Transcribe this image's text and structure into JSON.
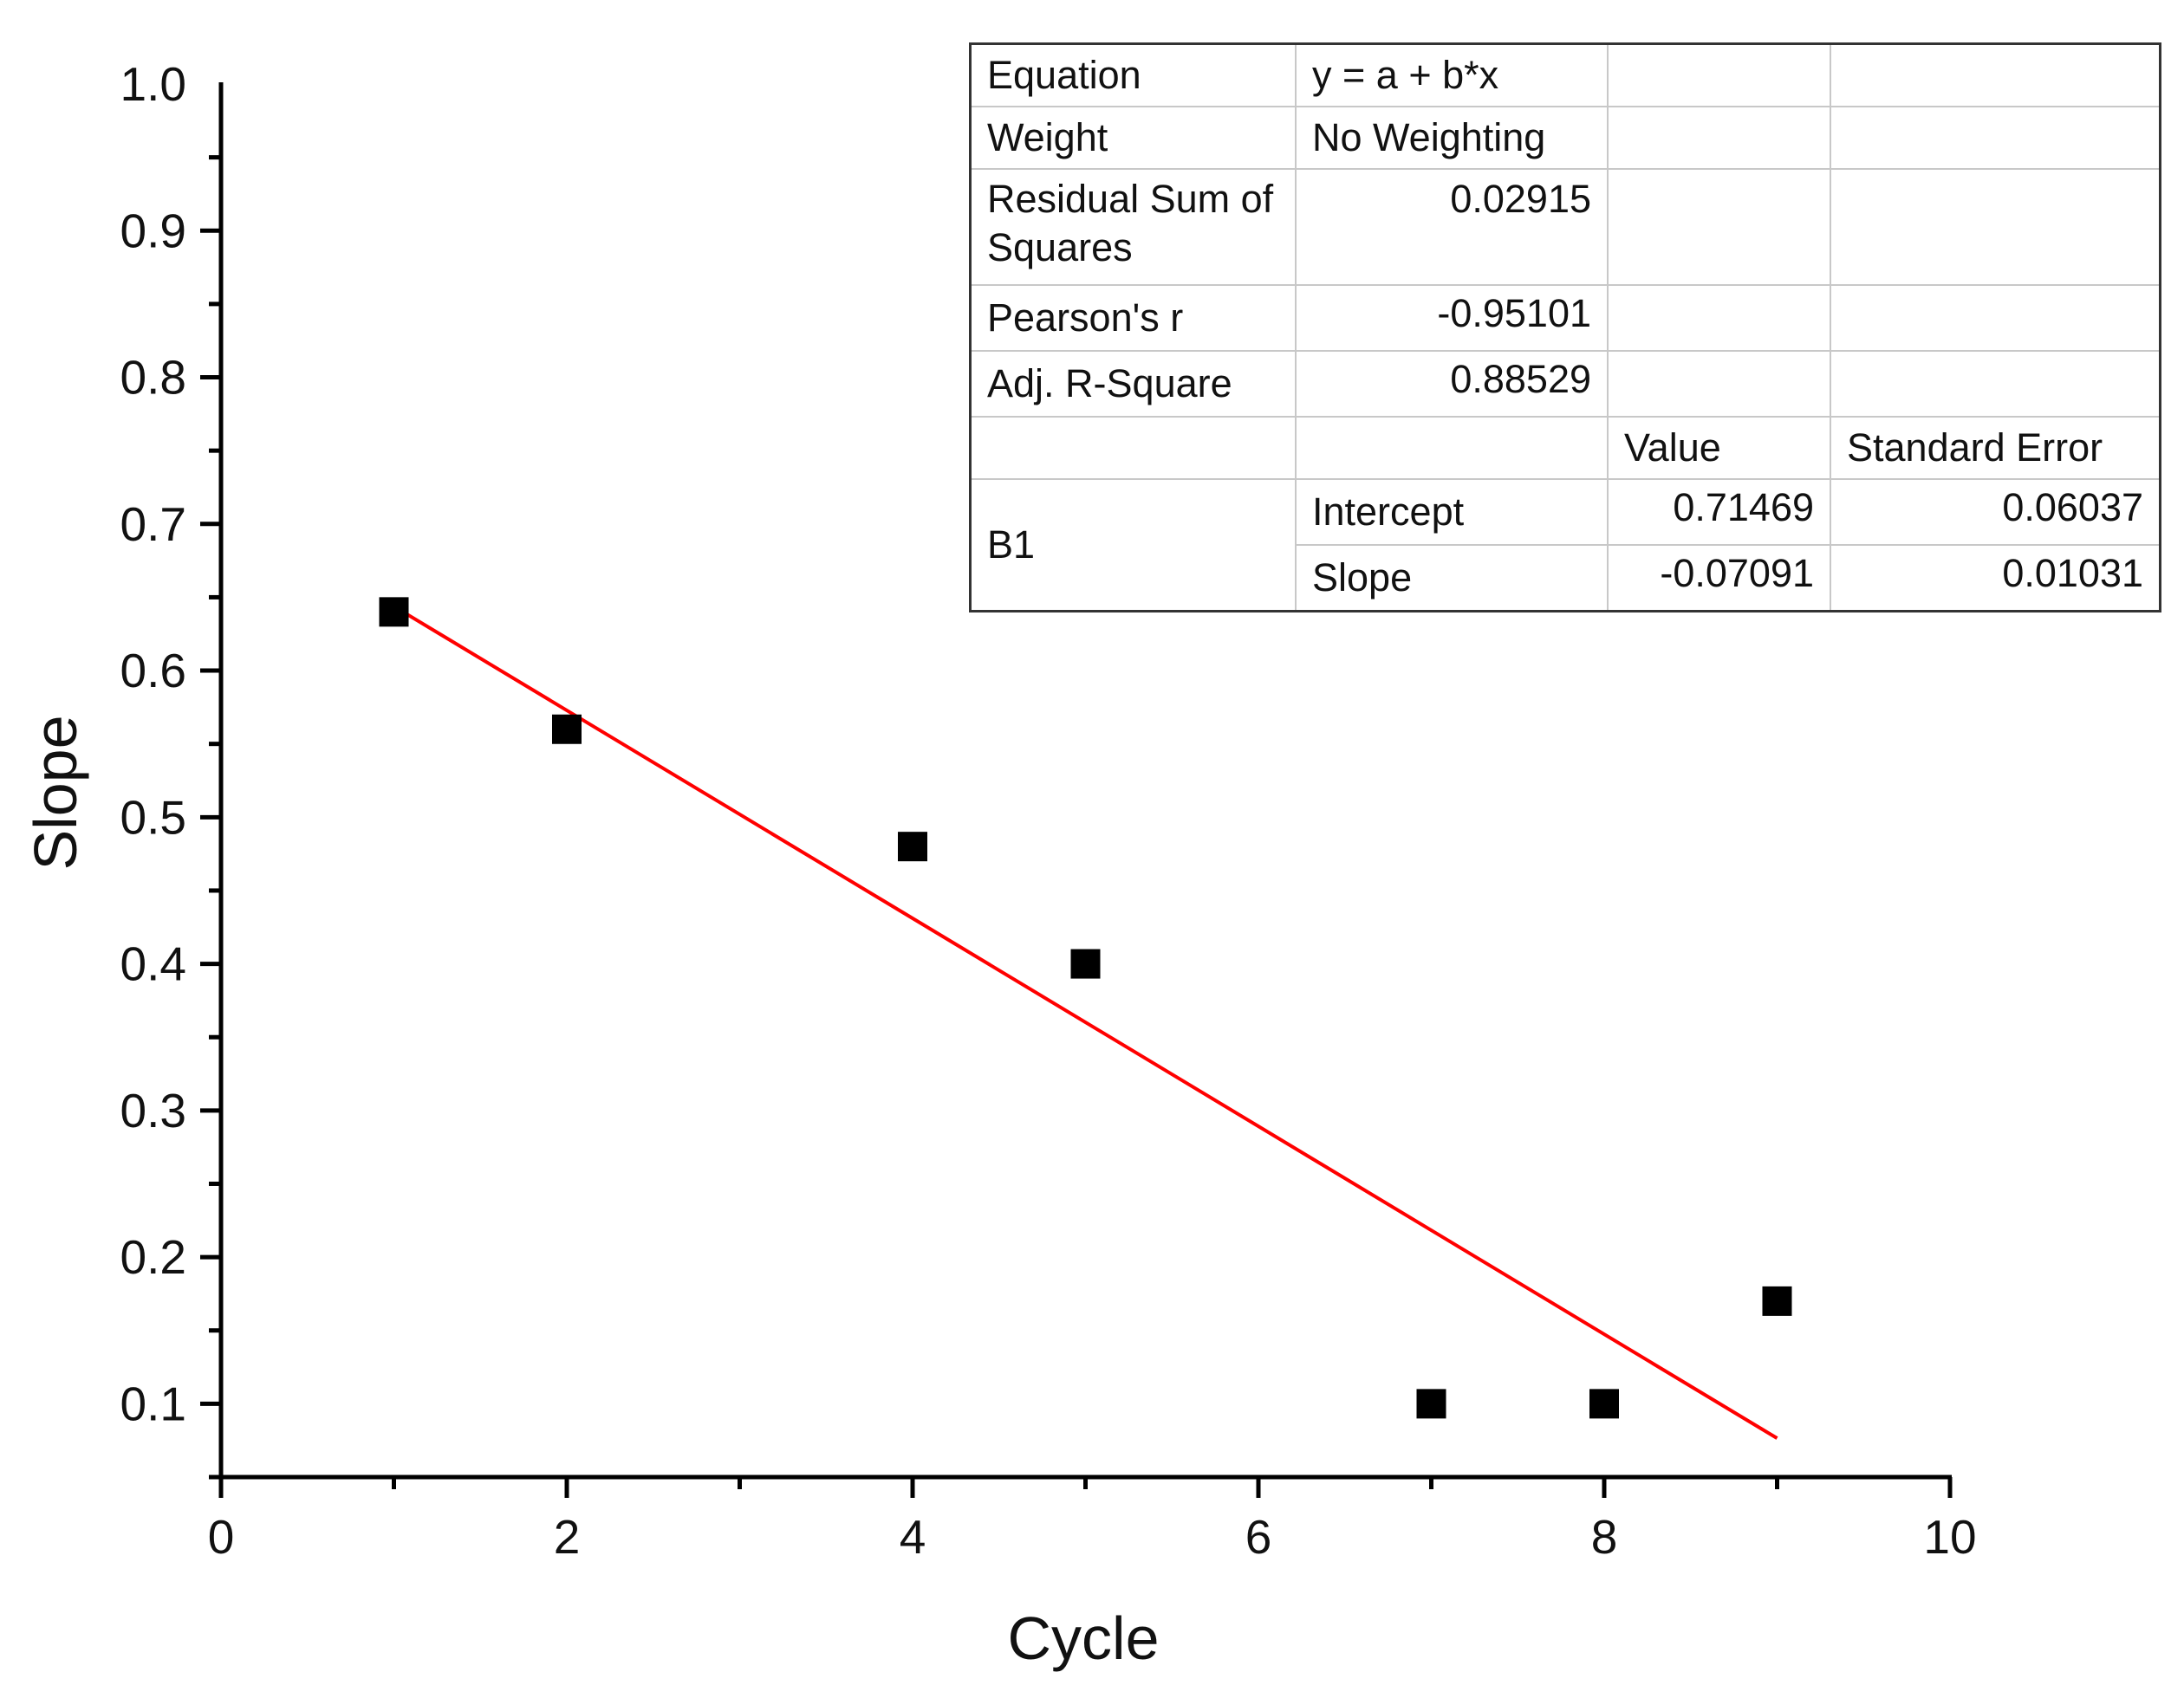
{
  "chart_data": {
    "type": "scatter",
    "title": "",
    "xlabel": "Cycle",
    "ylabel": "Slope",
    "xlim": [
      0,
      10
    ],
    "ylim": [
      0.05,
      1.0
    ],
    "x_ticks": [
      "0",
      "2",
      "4",
      "6",
      "8",
      "10"
    ],
    "y_ticks": [
      "0.1",
      "0.2",
      "0.3",
      "0.4",
      "0.5",
      "0.6",
      "0.7",
      "0.8",
      "0.9",
      "1.0"
    ],
    "series": [
      {
        "name": "B1",
        "marker": "square",
        "color": "#000000",
        "points": [
          {
            "x": 1,
            "y": 0.64
          },
          {
            "x": 2,
            "y": 0.56
          },
          {
            "x": 4,
            "y": 0.48
          },
          {
            "x": 5,
            "y": 0.4
          },
          {
            "x": 7,
            "y": 0.1
          },
          {
            "x": 8,
            "y": 0.1
          },
          {
            "x": 9,
            "y": 0.17
          }
        ]
      }
    ],
    "fit_line": {
      "color": "#ff0000",
      "intercept": 0.71469,
      "slope": -0.07091,
      "x_range": [
        1,
        9
      ]
    }
  },
  "fit_table": {
    "equation_label": "Equation",
    "equation_value": "y = a + b*x",
    "weight_label": "Weight",
    "weight_value": "No Weighting",
    "rss_label": "Residual Sum of Squares",
    "rss_value": "0.02915",
    "pearson_label": "Pearson's r",
    "pearson_value": "-0.95101",
    "adjr_label": "Adj. R-Square",
    "adjr_value": "0.88529",
    "value_header": "Value",
    "stderr_header": "Standard Error",
    "group_label": "B1",
    "intercept_label": "Intercept",
    "intercept_value": "0.71469",
    "intercept_err": "0.06037",
    "slope_label": "Slope",
    "slope_value": "-0.07091",
    "slope_err": "0.01031"
  }
}
